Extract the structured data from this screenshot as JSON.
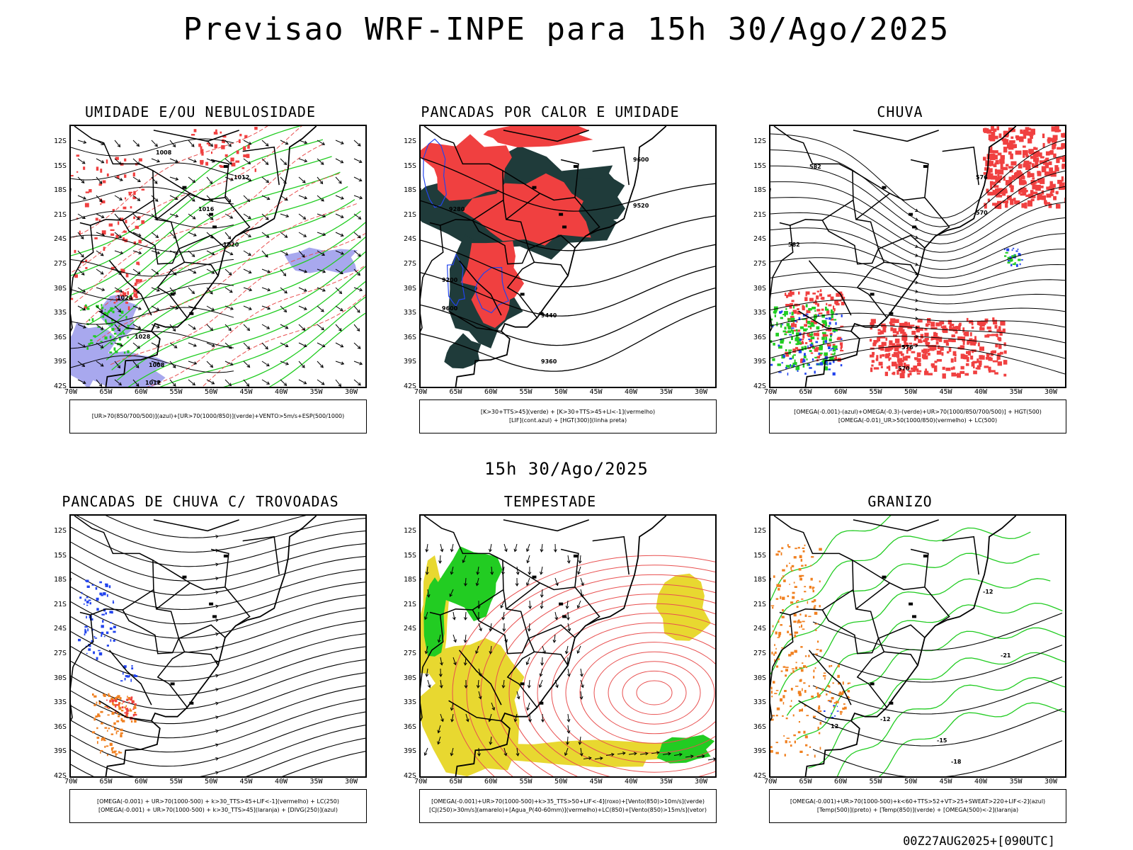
{
  "title": "Previsao WRF-INPE  para 15h 30/Ago/2025",
  "mid_title": "15h 30/Ago/2025",
  "footer": "00Z27AUG2025+[090UTC]",
  "lat_ticks": [
    "12S",
    "15S",
    "18S",
    "21S",
    "24S",
    "27S",
    "30S",
    "33S",
    "36S",
    "39S",
    "42S"
  ],
  "lon_ticks": [
    "70W",
    "65W",
    "60W",
    "55W",
    "50W",
    "45W",
    "40W",
    "35W",
    "30W"
  ],
  "colors": {
    "red": "#f04040",
    "green": "#22cc22",
    "blue": "#2244ee",
    "lavender": "#a8a8ee",
    "dark_teal": "#1f3b3a",
    "yellow": "#e8d830",
    "orange": "#f08020",
    "line_red": "#e85050"
  },
  "panels": [
    {
      "title": "UMIDADE E/OU NEBULOSIDADE",
      "legend": [
        "[UR>70(850/700/500)](azul)+[UR>70(1000/850)](verde)+VENTO>5m/s+ESP(500/1000)"
      ],
      "contour_labels": [
        "1008",
        "1012",
        "1016",
        "1020",
        "1024",
        "1028"
      ]
    },
    {
      "title": "PANCADAS POR CALOR E UMIDADE",
      "legend": [
        "[K>30+TTS>45](verde) + [K>30+TTS>45+LI<-1](vermelho)",
        "[LIF](cont.azul) + [HGT(300)](linha preta)"
      ],
      "contour_labels": [
        "9600",
        "9520",
        "9440",
        "9360",
        "9280",
        "9200"
      ]
    },
    {
      "title": "CHUVA",
      "legend": [
        "[OMEGA(-0.001)-(azul)+OMEGA(-0.3)-(verde)+UR>70(1000/850/700/500)] + HGT(500)",
        "[OMEGA(-0.01)_UR>50(1000/850)(vermelho) + LC(500)"
      ],
      "contour_labels": [
        "582",
        "576",
        "570"
      ]
    },
    {
      "title": "PANCADAS DE CHUVA C/ TROVOADAS",
      "legend": [
        "[OMEGA(-0.001) + UR>70(1000-500) + k>30_TTS>45+LIF<-1](vermelho) + LC(250)",
        "[OMEGA(-0.001) + UR>70(1000-500) + k>30_TTS>45](laranja) + [DIVG(250)](azul)"
      ],
      "contour_labels": []
    },
    {
      "title": "TEMPESTADE",
      "legend": [
        "[OMEGA(-0.001)+UR>70(1000-500)+k>35_TTS>50+LIF<-4](roxo)+[Vento(850)>10m/s](verde)",
        "[CJ(250)>30m/s](amarelo)+[Agua_P(40-60mm)](vermelho)+LC(850)+[Vento(850)>15m/s](vetor)"
      ],
      "contour_labels": []
    },
    {
      "title": "GRANIZO",
      "legend": [
        "[OMEGA(-0.001)+UR>70(1000-500)+k<60+TTS>52+VT>25+SWEAT>220+LIF<-2](azul)",
        "[Temp(500)](preto) + [Temp(850)](verde) + [OMEGA(500)<-2](laranja)"
      ],
      "contour_labels": [
        "-12",
        "-15",
        "-18",
        "-21",
        "12"
      ]
    }
  ]
}
